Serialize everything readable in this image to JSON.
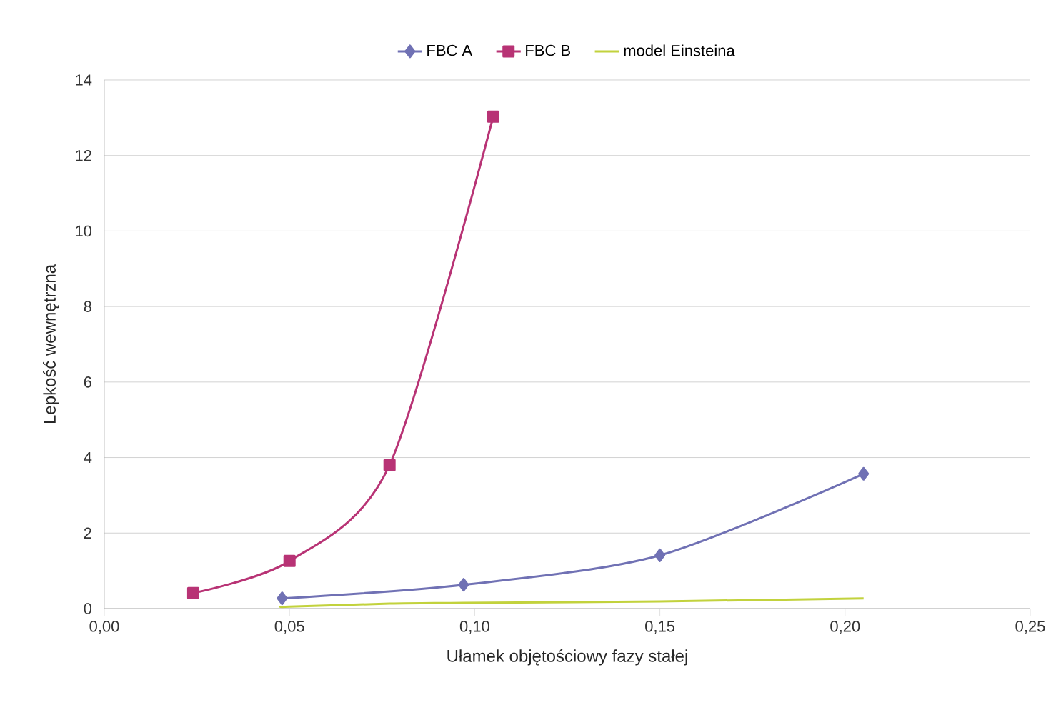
{
  "chart_data": {
    "type": "line",
    "xlabel": "Ułamek objętościowy fazy stałej",
    "ylabel": "Lepkość wewnętrzna",
    "xlim": [
      0,
      0.25
    ],
    "xticks": [
      {
        "value": 0,
        "label": "0,00"
      },
      {
        "value": 0.05,
        "label": "0,05"
      },
      {
        "value": 0.1,
        "label": "0,10"
      },
      {
        "value": 0.15,
        "label": "0,15"
      },
      {
        "value": 0.2,
        "label": "0,20"
      },
      {
        "value": 0.25,
        "label": "0,25"
      }
    ],
    "ylim": [
      0,
      14
    ],
    "yticks": [
      0,
      2,
      4,
      6,
      8,
      10,
      12,
      14
    ],
    "grid": "y",
    "legend": "top",
    "series": [
      {
        "name": "FBC A",
        "color": "#7071b4",
        "marker": "diamond",
        "x": [
          0.048,
          0.097,
          0.15,
          0.205
        ],
        "values": [
          0.27,
          0.63,
          1.41,
          3.57
        ]
      },
      {
        "name": "FBC B",
        "color": "#b83375",
        "marker": "square",
        "x": [
          0.024,
          0.05,
          0.077,
          0.105
        ],
        "values": [
          0.41,
          1.26,
          3.8,
          13.03
        ]
      },
      {
        "name": "model Einsteina",
        "color": "#c2d23d",
        "marker": "none",
        "x": [
          0.048,
          0.05,
          0.077,
          0.097,
          0.15,
          0.205
        ],
        "values": [
          0.04,
          0.05,
          0.13,
          0.15,
          0.19,
          0.27
        ]
      }
    ]
  }
}
